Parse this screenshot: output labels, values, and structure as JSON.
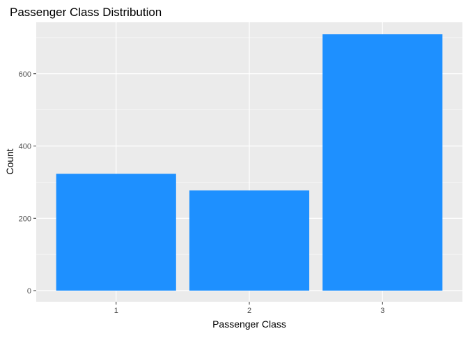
{
  "chart_data": {
    "type": "bar",
    "title": "Passenger Class Distribution",
    "xlabel": "Passenger Class",
    "ylabel": "Count",
    "categories": [
      "1",
      "2",
      "3"
    ],
    "values": [
      323,
      277,
      709
    ],
    "ylim": [
      0,
      750
    ],
    "yticks": [
      0,
      200,
      400,
      600
    ],
    "grid": true,
    "legend": "none",
    "bar_color": "#1E90FF",
    "panel_color": "#EBEBEB",
    "grid_color": "#FFFFFF"
  }
}
